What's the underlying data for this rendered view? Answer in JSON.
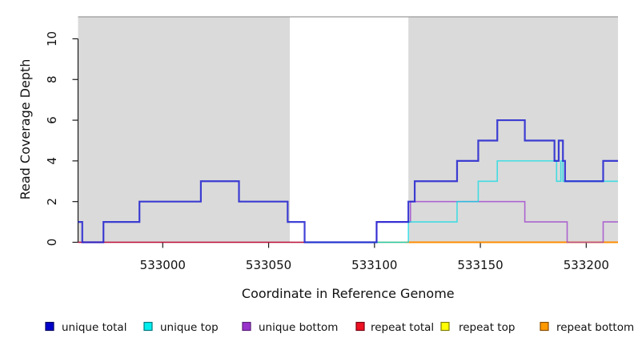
{
  "figure_title": "Read coverage depth plot",
  "chart_data": {
    "type": "line",
    "subtype": "step-after",
    "title": "",
    "xlabel": "Coordinate in Reference Genome",
    "ylabel": "Read Coverage Depth",
    "xlim": [
      532960,
      533215
    ],
    "ylim": [
      0,
      11.1
    ],
    "xticks": [
      533000,
      533050,
      533100,
      533150,
      533200
    ],
    "yticks": [
      0,
      2,
      4,
      6,
      8,
      10
    ],
    "grid": "off",
    "legend_position": "bottom",
    "background_color": "#ffffff",
    "shaded_regions": [
      {
        "name": "left-gray-band",
        "from": 532960,
        "to": 533060,
        "color": "#dadada"
      },
      {
        "name": "right-gray-band",
        "from": 533116,
        "to": 533215,
        "color": "#dadada"
      }
    ],
    "top_boundary_line": {
      "y": 11.08,
      "color": "#9a9a9a"
    },
    "axis_color": "#1a1a1a",
    "series": [
      {
        "name": "unique total",
        "color": "#2020d0",
        "opacity": 0.85,
        "width": 2.2,
        "legend_fill": "#0000cd",
        "legend_border": "#000060",
        "points": [
          [
            532960,
            1
          ],
          [
            532962,
            0
          ],
          [
            532972,
            1
          ],
          [
            532989,
            2
          ],
          [
            533018,
            3
          ],
          [
            533036,
            2
          ],
          [
            533059,
            1
          ],
          [
            533067,
            0
          ],
          [
            533101,
            1
          ],
          [
            533116,
            2
          ],
          [
            533119,
            3
          ],
          [
            533139,
            4
          ],
          [
            533149,
            5
          ],
          [
            533158,
            6
          ],
          [
            533171,
            5
          ],
          [
            533185,
            4
          ],
          [
            533187,
            5
          ],
          [
            533189,
            4
          ],
          [
            533190,
            3
          ],
          [
            533208,
            4
          ]
        ],
        "end": 533215
      },
      {
        "name": "unique top",
        "color": "#00dde6",
        "opacity": 0.7,
        "width": 1.6,
        "legend_fill": "#00eeee",
        "legend_border": "#007a80",
        "points": [
          [
            533067,
            0
          ],
          [
            533116,
            1
          ],
          [
            533139,
            2
          ],
          [
            533149,
            3
          ],
          [
            533158,
            4
          ],
          [
            533186,
            3
          ],
          [
            533188,
            4
          ],
          [
            533189,
            3
          ]
        ],
        "end": 533215
      },
      {
        "name": "unique bottom",
        "color": "#9933cc",
        "opacity": 0.7,
        "width": 1.6,
        "legend_fill": "#9932cc",
        "legend_border": "#5c1e7a",
        "points": [
          [
            533067,
            0
          ],
          [
            533101,
            1
          ],
          [
            533117,
            2
          ],
          [
            533171,
            1
          ],
          [
            533191,
            0
          ],
          [
            533208,
            1
          ]
        ],
        "end": 533215
      },
      {
        "name": "repeat total",
        "color": "#dd1144",
        "opacity": 0.85,
        "width": 1.6,
        "legend_fill": "#ee1122",
        "legend_border": "#7a0011",
        "points": [
          [
            532960,
            0
          ]
        ],
        "end": 533067
      },
      {
        "name": "repeat top",
        "color": "#e6e600",
        "opacity": 0.6,
        "width": 1.6,
        "legend_fill": "#ffff00",
        "legend_border": "#808000",
        "points": [
          [
            533067,
            0
          ]
        ],
        "end": 533115
      },
      {
        "name": "repeat bottom",
        "color": "#ff8c00",
        "opacity": 1.0,
        "width": 2.0,
        "legend_fill": "#ff9900",
        "legend_border": "#8a4d00",
        "points": [
          [
            533115,
            0
          ]
        ],
        "end": 533215
      }
    ]
  },
  "legend": {
    "items": [
      {
        "label": "unique total"
      },
      {
        "label": "unique top"
      },
      {
        "label": "unique bottom"
      },
      {
        "label": "repeat total"
      },
      {
        "label": "repeat top"
      },
      {
        "label": "repeat bottom"
      }
    ]
  }
}
